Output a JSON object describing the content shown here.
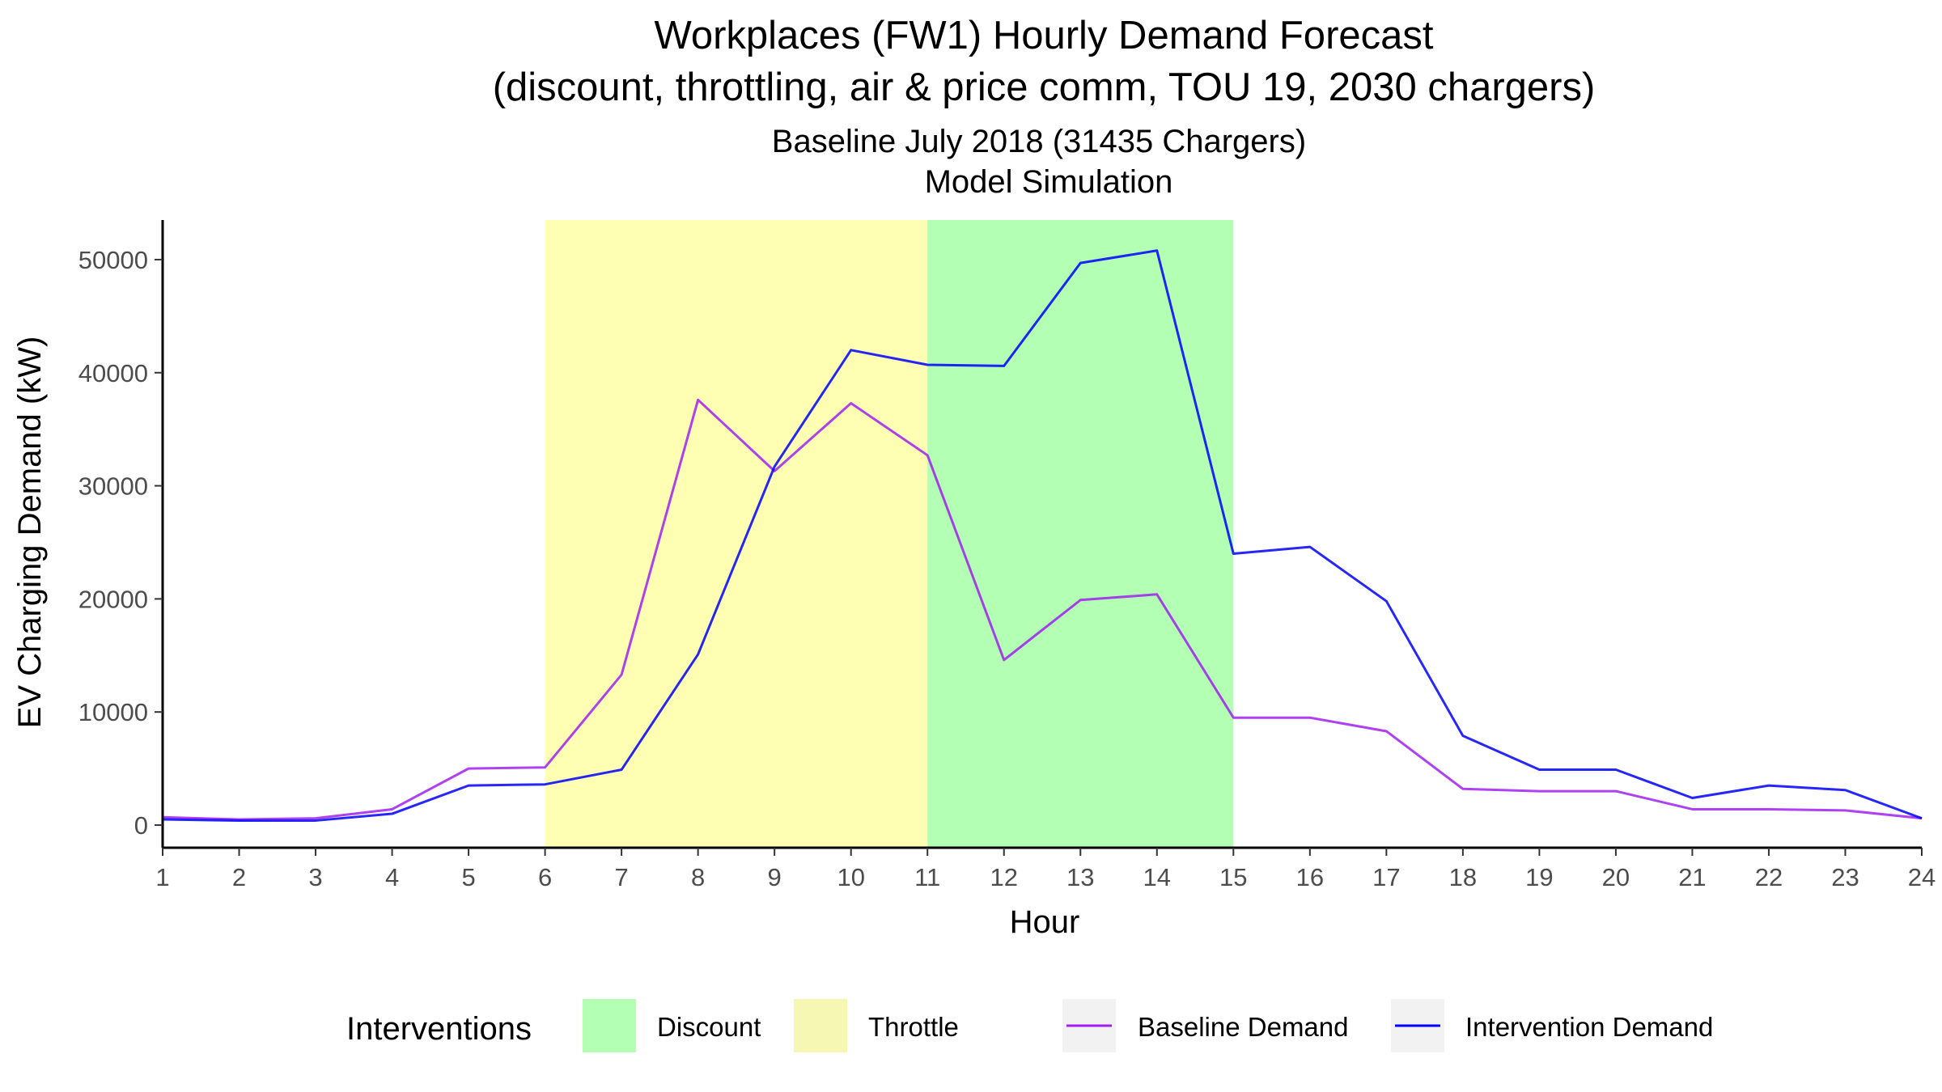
{
  "chart_data": {
    "type": "line",
    "title_lines": [
      "Workplaces (FW1) Hourly Demand Forecast",
      "(discount, throttling, air & price comm, TOU 19, 2030 chargers)"
    ],
    "subtitle_lines": [
      "Baseline July 2018 (31435 Chargers)",
      "Model Simulation"
    ],
    "xlabel": "Hour",
    "ylabel": "EV Charging Demand (kW)",
    "xlim": [
      1,
      24
    ],
    "ylim": [
      -2000,
      53500
    ],
    "x_ticks": [
      1,
      2,
      3,
      4,
      5,
      6,
      7,
      8,
      9,
      10,
      11,
      12,
      13,
      14,
      15,
      16,
      17,
      18,
      19,
      20,
      21,
      22,
      23,
      24
    ],
    "y_ticks": [
      0,
      10000,
      20000,
      30000,
      40000,
      50000
    ],
    "x": [
      1,
      2,
      3,
      4,
      5,
      6,
      7,
      8,
      9,
      10,
      11,
      12,
      13,
      14,
      15,
      16,
      17,
      18,
      19,
      20,
      21,
      22,
      23,
      24
    ],
    "series": [
      {
        "name": "Baseline Demand",
        "color": "#a020f0",
        "values": [
          700,
          500,
          600,
          1400,
          5000,
          5100,
          13300,
          37600,
          31300,
          37300,
          32700,
          14600,
          19900,
          20400,
          9500,
          9500,
          8300,
          3200,
          3000,
          3000,
          1400,
          1400,
          1300,
          600
        ]
      },
      {
        "name": "Intervention Demand",
        "color": "#0000ff",
        "values": [
          500,
          400,
          400,
          1000,
          3500,
          3600,
          4900,
          15100,
          31700,
          42000,
          40700,
          40600,
          49700,
          50800,
          24000,
          24600,
          19800,
          7900,
          4900,
          4900,
          2400,
          3500,
          3100,
          600
        ]
      }
    ],
    "intervention_bands": [
      {
        "name": "Throttle",
        "from_hour": 6,
        "to_hour": 11,
        "color": "#ffffb3"
      },
      {
        "name": "Discount",
        "from_hour": 11,
        "to_hour": 15,
        "color": "#b3ffb3"
      }
    ],
    "legend": {
      "position": "bottom",
      "title": "Interventions",
      "entries": [
        {
          "label": "Discount",
          "kind": "fill",
          "color": "#b3ffb3"
        },
        {
          "label": "Throttle",
          "kind": "fill",
          "color": "#ffffb3"
        },
        {
          "label": "Baseline Demand",
          "kind": "line",
          "color": "#a020f0"
        },
        {
          "label": "Intervention Demand",
          "kind": "line",
          "color": "#0000ff"
        }
      ]
    },
    "grid": false
  }
}
